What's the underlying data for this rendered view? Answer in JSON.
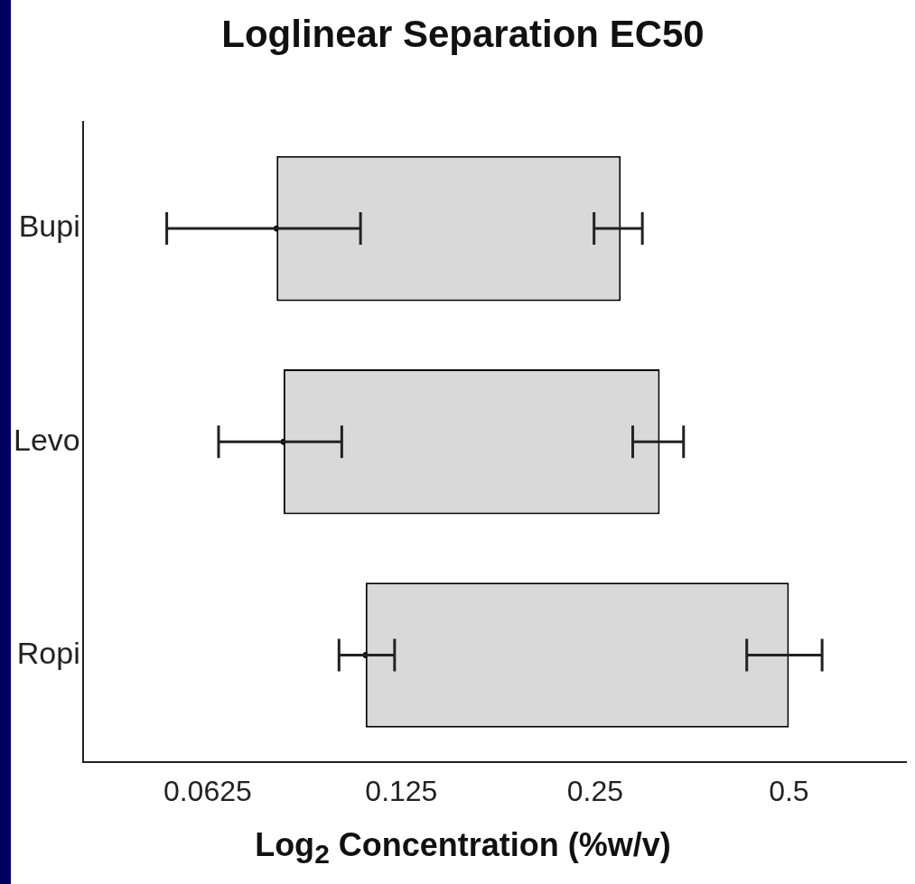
{
  "chart_data": {
    "type": "bar",
    "title": "Loglinear Separation EC50",
    "xlabel": "Log$_{2}$ Concentration (%w/v)",
    "orientation": "horizontal",
    "log": "x",
    "categories": [
      "Bupi",
      "Levo",
      "Ropi"
    ],
    "xlim": [
      0.04,
      0.76
    ],
    "xticks": [
      0.0625,
      0.125,
      0.25,
      0.5
    ],
    "series": [
      {
        "color": "#d9d9d9",
        "base": [
          0.08,
          0.082,
          0.11
        ],
        "values": [
          0.194,
          0.233,
          0.39
        ],
        "errors": [
          [
            0.249,
            0.296
          ],
          [
            0.286,
            0.343
          ],
          [
            0.43,
            0.563
          ]
        ]
      },
      {
        "type": "scatter",
        "color": "#000000",
        "marker": "circle",
        "values": [
          0.08,
          0.082,
          0.11
        ],
        "errors": [
          [
            0.054,
            0.108
          ],
          [
            0.065,
            0.101
          ],
          [
            0.1,
            0.122
          ]
        ]
      }
    ],
    "legend": false
  }
}
